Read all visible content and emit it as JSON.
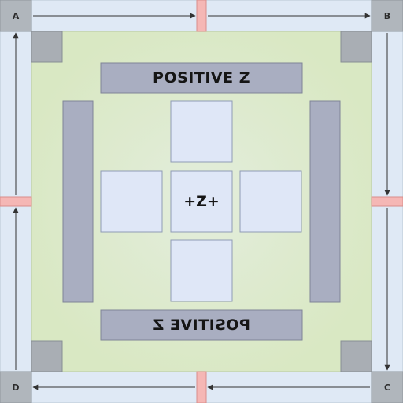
{
  "corners": {
    "top_left": "A",
    "top_right": "B",
    "bottom_right": "C",
    "bottom_left": "D"
  },
  "labels": {
    "top_bar": "POSITIVE Z",
    "bottom_bar_mirrored": "POSITIVE Z",
    "center": "+Z+"
  },
  "colors": {
    "background": "#ffffff",
    "frame": "#dfe9f5",
    "inner_field": "#dce9c8",
    "corner": "#b0b6bc",
    "bar": "#a9aec1",
    "tile": "#dfe7f7",
    "marker": "#f5b7b5",
    "arrow": "#333333"
  }
}
